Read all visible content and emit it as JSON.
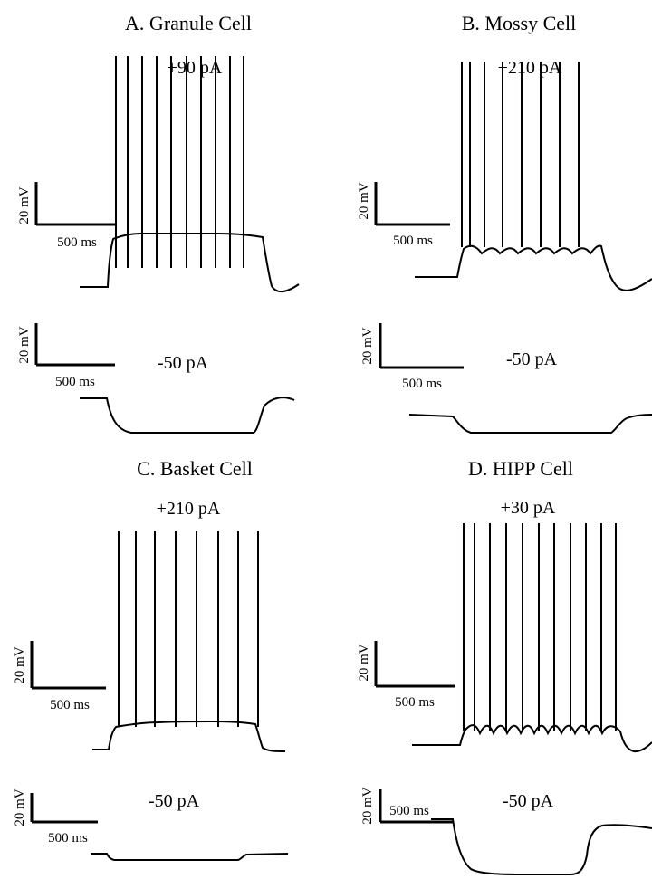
{
  "chart_data": [
    {
      "type": "line",
      "title": "A. Granule Cell",
      "traces": [
        {
          "current_label": "+90 pA",
          "scale_v": "20 mV",
          "scale_t": "500 ms",
          "spike_count": 10
        },
        {
          "current_label": "-50 pA",
          "scale_v": "20 mV",
          "scale_t": "500 ms",
          "spike_count": 0
        }
      ]
    },
    {
      "type": "line",
      "title": "B. Mossy Cell",
      "traces": [
        {
          "current_label": "+210 pA",
          "scale_v": "20 mV",
          "scale_t": "500 ms",
          "spike_count": 8
        },
        {
          "current_label": "-50 pA",
          "scale_v": "20 mV",
          "scale_t": "500 ms",
          "spike_count": 0
        }
      ]
    },
    {
      "type": "line",
      "title": "C. Basket Cell",
      "traces": [
        {
          "current_label": "+210 pA",
          "scale_v": "20 mV",
          "scale_t": "500 ms",
          "spike_count": 8
        },
        {
          "current_label": "-50 pA",
          "scale_v": "20 mV",
          "scale_t": "500 ms",
          "spike_count": 0
        }
      ]
    },
    {
      "type": "line",
      "title": "D. HIPP Cell",
      "traces": [
        {
          "current_label": "+30 pA",
          "scale_v": "20 mV",
          "scale_t": "500 ms",
          "spike_count": 11
        },
        {
          "current_label": "-50 pA",
          "scale_v": "20 mV",
          "scale_t": "500 ms",
          "spike_count": 0
        }
      ]
    }
  ]
}
